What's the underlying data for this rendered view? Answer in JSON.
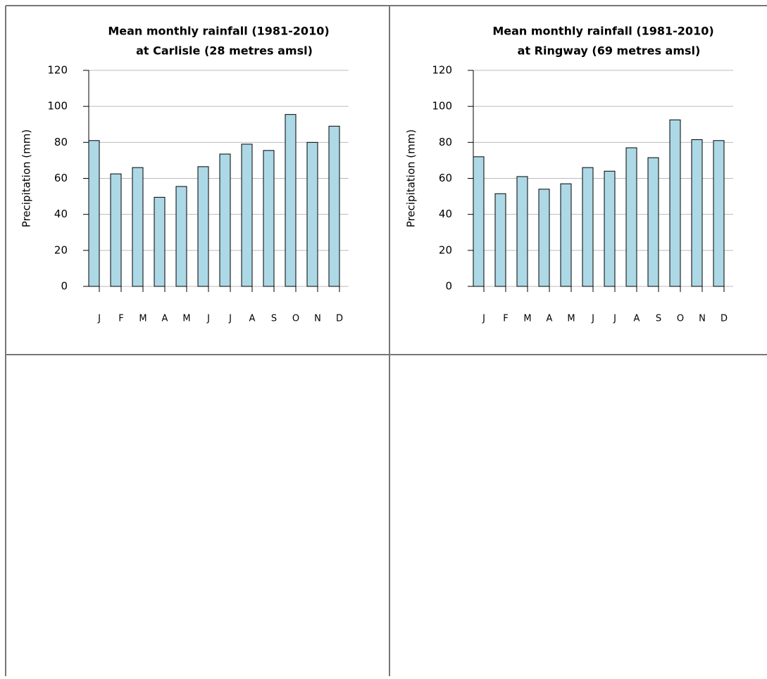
{
  "chart_data": [
    {
      "type": "bar",
      "title": "Mean monthly rainfall (1981-2010)",
      "subtitle": "at Carlisle (28 metres amsl)",
      "y_label": "Precipitation (mm)",
      "categories": [
        "J",
        "F",
        "M",
        "A",
        "M",
        "J",
        "J",
        "A",
        "S",
        "O",
        "N",
        "D"
      ],
      "values": [
        81,
        62.5,
        66,
        49.5,
        55.5,
        66.5,
        73.5,
        79,
        75.5,
        95.5,
        80,
        89
      ],
      "color": "#add8e6",
      "ylim": [
        0,
        120
      ],
      "yticks": [
        0,
        20,
        40,
        60,
        80,
        100,
        120
      ],
      "grid": true
    },
    {
      "type": "bar",
      "title": "Mean monthly rainfall (1981-2010)",
      "subtitle": "at Ringway (69 metres amsl)",
      "y_label": "Precipitation (mm)",
      "categories": [
        "J",
        "F",
        "M",
        "A",
        "M",
        "J",
        "J",
        "A",
        "S",
        "O",
        "N",
        "D"
      ],
      "values": [
        72,
        51.5,
        61,
        54,
        57,
        66,
        64,
        77,
        71.5,
        92.5,
        81.5,
        81
      ],
      "color": "#add8e6",
      "ylim": [
        0,
        120
      ],
      "yticks": [
        0,
        20,
        40,
        60,
        80,
        100,
        120
      ],
      "grid": true
    }
  ]
}
